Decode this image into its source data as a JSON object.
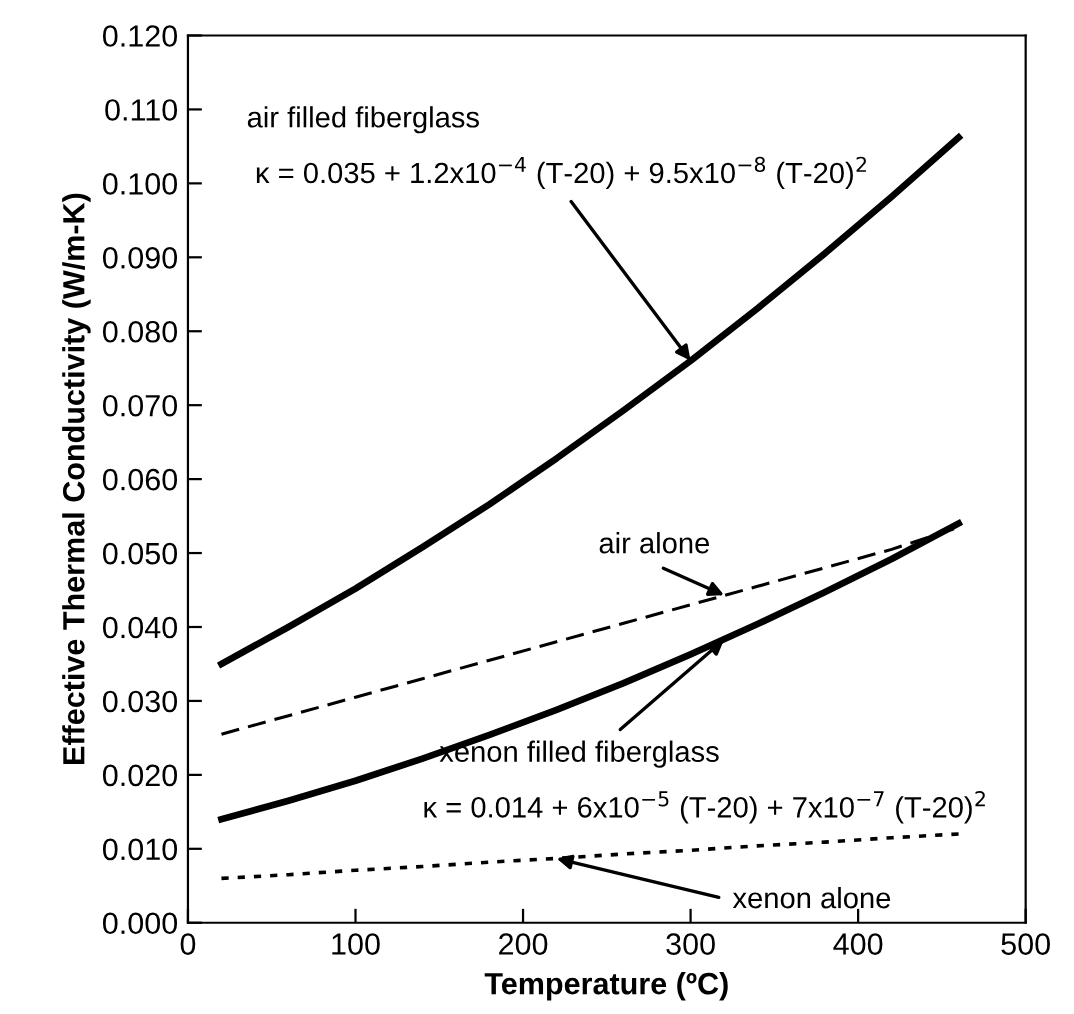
{
  "chart_data": {
    "type": "line",
    "xlabel": "Temperature (ºC)",
    "ylabel": "Effective Thermal Conductivity (W/m-K)",
    "x": [
      20,
      60,
      100,
      140,
      180,
      220,
      260,
      300,
      340,
      380,
      420,
      460
    ],
    "series": [
      {
        "color": "#000000",
        "line_style": "solid",
        "values": [
          0.035,
          0.04,
          0.0452,
          0.0508,
          0.0566,
          0.0628,
          0.0693,
          0.076,
          0.0831,
          0.0905,
          0.0982,
          0.1062
        ]
      },
      {
        "color": "#000000",
        "line_style": "dashed",
        "values": [
          0.0255,
          0.028,
          0.0305,
          0.033,
          0.0355,
          0.038,
          0.0405,
          0.043,
          0.0455,
          0.048,
          0.0505,
          0.0535
        ]
      },
      {
        "color": "#000000",
        "line_style": "solid",
        "values": [
          0.014,
          0.0165,
          0.0192,
          0.0222,
          0.0254,
          0.0288,
          0.0324,
          0.0363,
          0.0404,
          0.0447,
          0.0492,
          0.054
        ]
      },
      {
        "color": "#000000",
        "line_style": "dotted",
        "values": [
          0.006,
          0.0065,
          0.0071,
          0.0076,
          0.0082,
          0.0087,
          0.0093,
          0.0098,
          0.0104,
          0.0109,
          0.0115,
          0.012
        ]
      }
    ],
    "xlim": [
      0,
      500
    ],
    "xticks": [
      0,
      100,
      200,
      300,
      400,
      500
    ],
    "ylim": [
      0,
      0.12
    ],
    "yticks": [
      {
        "value": 0,
        "label": "0.000"
      },
      {
        "value": 0.01,
        "label": "0.010"
      },
      {
        "value": 0.02,
        "label": "0.020"
      },
      {
        "value": 0.03,
        "label": "0.030"
      },
      {
        "value": 0.04,
        "label": "0.040"
      },
      {
        "value": 0.05,
        "label": "0.050"
      },
      {
        "value": 0.06,
        "label": "0.060"
      },
      {
        "value": 0.07,
        "label": "0.070"
      },
      {
        "value": 0.08,
        "label": "0.080"
      },
      {
        "value": 0.09,
        "label": "0.090"
      },
      {
        "value": 0.1,
        "label": "0.100"
      },
      {
        "value": 0.11,
        "label": "0.110"
      },
      {
        "value": 0.12,
        "label": "0.120"
      }
    ],
    "grid": false,
    "legend": false,
    "marker": "none",
    "annotations": [
      "air filled fiberglass",
      {
        "text": "κ = 0.035 + 1.2x10$^{−4}$ (T-20) + 9.5x10$^{−8}$ (T-20)$^{2}$",
        "x": 300,
        "y": 0.076
      },
      {
        "text": "air alone",
        "x": 320,
        "y": 0.0443
      },
      {
        "text": "xenon filled fiberglass",
        "x": 320,
        "y": 0.0383
      },
      "κ = 0.014 + 6x10$^{−5}$ (T-20) + 7x10$^{−7}$ (T-20)$^{2}$",
      {
        "text": "xenon alone",
        "x": 220,
        "y": 0.0087
      }
    ]
  }
}
